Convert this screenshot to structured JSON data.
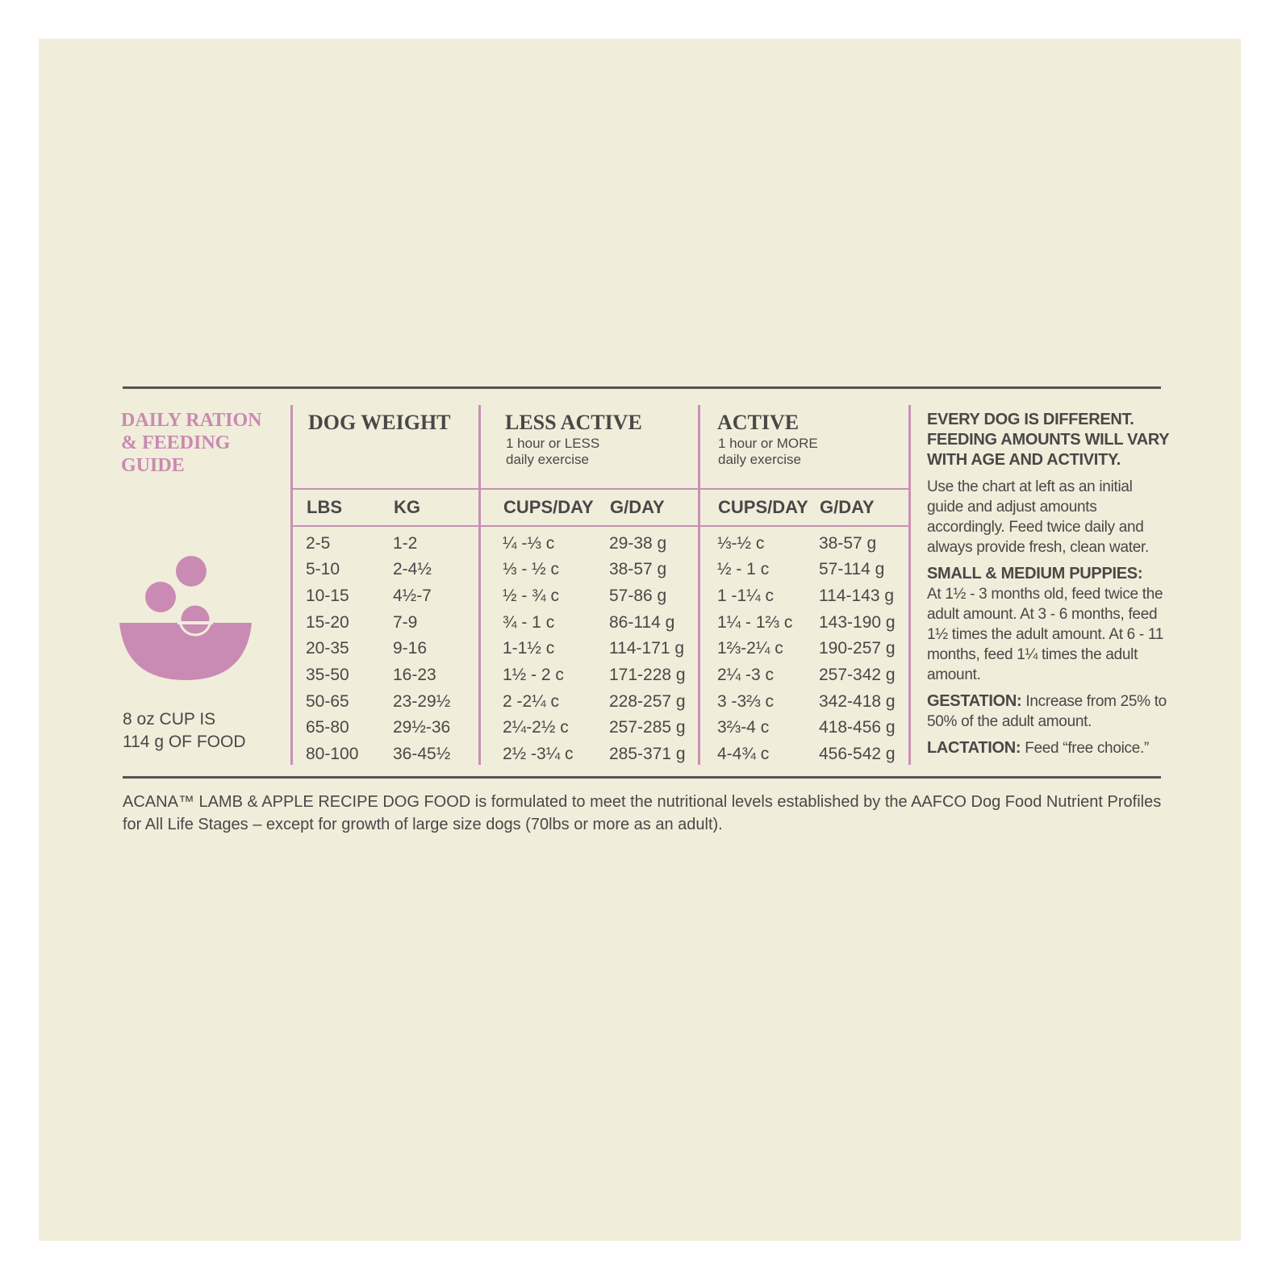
{
  "guide": {
    "title": [
      "DAILY RATION",
      "& FEEDING",
      "GUIDE"
    ],
    "cup_note": [
      "8 oz CUP IS",
      "114 g OF FOOD"
    ]
  },
  "table": {
    "groups": [
      {
        "title": "DOG WEIGHT"
      },
      {
        "title": "LESS ACTIVE",
        "subtitle": [
          "1 hour or LESS",
          "daily exercise"
        ]
      },
      {
        "title": "ACTIVE",
        "subtitle": [
          "1 hour or MORE",
          "daily exercise"
        ]
      }
    ],
    "columns": [
      "LBS",
      "KG",
      "CUPS/DAY",
      "G/DAY",
      "CUPS/DAY",
      "G/DAY"
    ],
    "rows": [
      [
        "2-5",
        "1-2",
        "¼ -⅓ c",
        "29-38 g",
        "⅓-½ c",
        "38-57 g"
      ],
      [
        "5-10",
        "2-4½",
        "⅓ - ½ c",
        "38-57 g",
        "½ - 1 c",
        "57-114 g"
      ],
      [
        "10-15",
        "4½-7",
        "½ - ¾ c",
        "57-86 g",
        "1 -1¼ c",
        "114-143 g"
      ],
      [
        "15-20",
        "7-9",
        "¾ - 1 c",
        "86-114 g",
        "1¼ - 1⅔ c",
        "143-190 g"
      ],
      [
        "20-35",
        "9-16",
        "1-1½ c",
        "114-171 g",
        "1⅔-2¼ c",
        "190-257 g"
      ],
      [
        "35-50",
        "16-23",
        "1½ - 2 c",
        "171-228 g",
        "2¼ -3 c",
        "257-342 g"
      ],
      [
        "50-65",
        "23-29½",
        "2 -2¼ c",
        "228-257 g",
        "3 -3⅔ c",
        "342-418 g"
      ],
      [
        "65-80",
        "29½-36",
        "2¼-2½ c",
        "257-285 g",
        "3⅔-4 c",
        "418-456 g"
      ],
      [
        "80-100",
        "36-45½",
        "2½ -3¼ c",
        "285-371 g",
        "4-4¾ c",
        "456-542 g"
      ]
    ]
  },
  "notes": {
    "heading": "EVERY DOG IS DIFFERENT. FEEDING AMOUNTS WILL VARY WITH AGE AND ACTIVITY.",
    "intro": "Use the chart at left as an initial guide and adjust amounts accordingly. Feed twice daily and always provide fresh, clean water.",
    "items": [
      {
        "label": "SMALL & MEDIUM PUPPIES:",
        "text": "At 1½ - 3 months old, feed twice the adult amount. At 3 - 6 months, feed 1½ times the adult amount. At 6 - 11 months, feed 1¼ times the adult amount."
      },
      {
        "label": "GESTATION:",
        "text": "Increase from 25% to 50% of the adult amount."
      },
      {
        "label": "LACTATION:",
        "text": "Feed “free choice.”"
      }
    ]
  },
  "footer": [
    "ACANA™ LAMB & APPLE RECIPE DOG FOOD is formulated to meet the nutritional levels established by the AAFCO Dog Food Nutrient Profiles",
    "for All Life Stages – except for growth of large size dogs (70lbs or more as an adult)."
  ]
}
